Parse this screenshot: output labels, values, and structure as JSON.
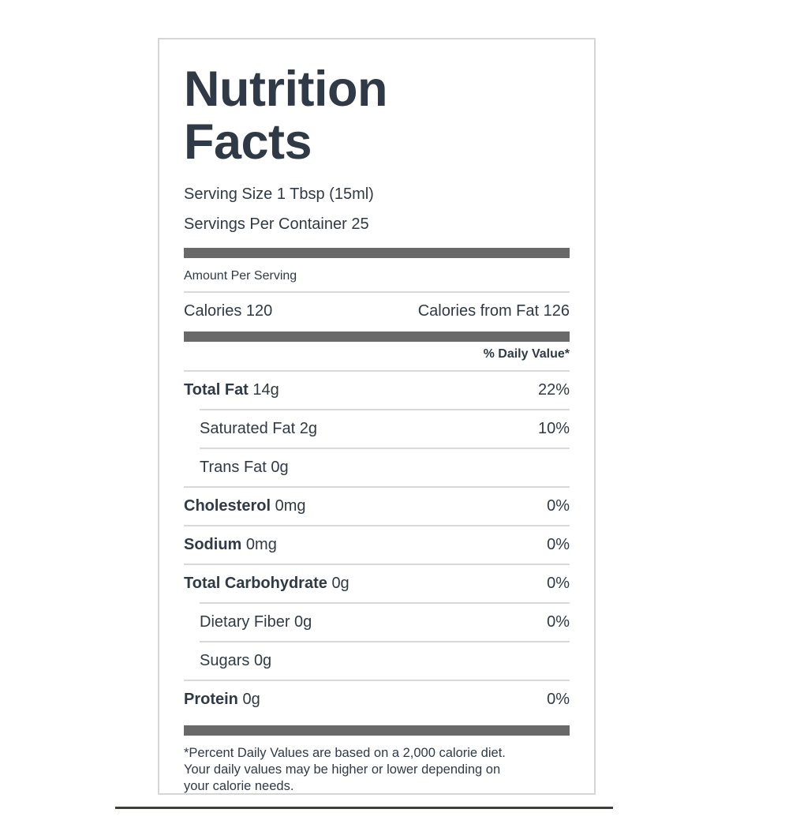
{
  "colors": {
    "background": "#ffffff",
    "text": "#303a46",
    "thick_bar": "#696969",
    "thin_line": "#d9d9d9",
    "card_border": "#d6d6d6",
    "bottom_rule": "#3f3e39"
  },
  "label": {
    "title": "Nutrition Facts",
    "serving_size": "Serving Size 1 Tbsp (15ml)",
    "servings_per_container": "Servings Per Container 25",
    "amount_per_serving": "Amount Per Serving",
    "calories": "Calories 120",
    "calories_from_fat": "Calories from Fat 126",
    "daily_value_header": "% Daily Value*",
    "footnote": "*Percent Daily Values are based on a 2,000 calorie diet. Your daily values may be higher or lower depending on your calorie needs."
  },
  "nutrients": [
    {
      "name": "Total Fat",
      "amount": "14g",
      "dv": "22%",
      "indent": false
    },
    {
      "name": "Saturated Fat",
      "amount": "2g",
      "dv": "10%",
      "indent": true
    },
    {
      "name": "Trans Fat",
      "amount": "0g",
      "dv": "",
      "indent": true
    },
    {
      "name": "Cholesterol",
      "amount": "0mg",
      "dv": "0%",
      "indent": false
    },
    {
      "name": "Sodium",
      "amount": "0mg",
      "dv": "0%",
      "indent": false
    },
    {
      "name": "Total Carbohydrate",
      "amount": "0g",
      "dv": "0%",
      "indent": false
    },
    {
      "name": "Dietary Fiber",
      "amount": "0g",
      "dv": "0%",
      "indent": true
    },
    {
      "name": "Sugars",
      "amount": "0g",
      "dv": "",
      "indent": true
    },
    {
      "name": "Protein",
      "amount": "0g",
      "dv": "0%",
      "indent": false
    }
  ]
}
